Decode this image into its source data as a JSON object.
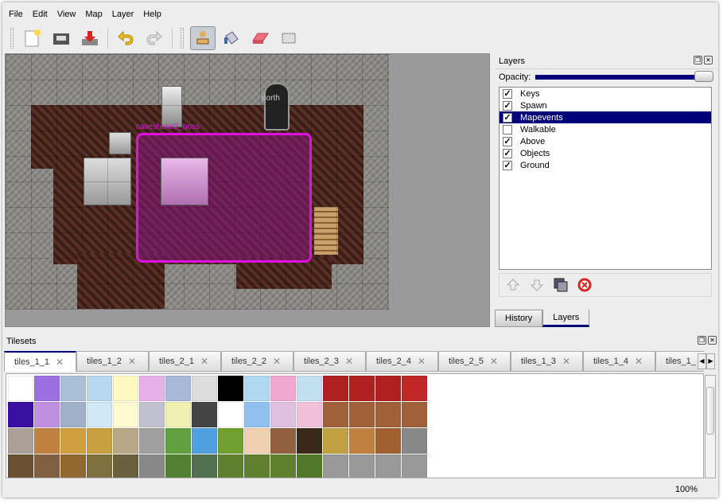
{
  "menu": [
    "File",
    "Edit",
    "View",
    "Map",
    "Layer",
    "Help"
  ],
  "toolbar": {
    "icons": [
      "new-file-icon",
      "open-folder-icon",
      "save-icon",
      "undo-icon",
      "redo-icon",
      "stamp-brush-icon",
      "bucket-fill-icon",
      "eraser-icon",
      "rect-select-icon"
    ],
    "active": "stamp-brush-icon"
  },
  "map": {
    "labels": {
      "north": "north",
      "event": "caveshake2_boss"
    },
    "event_color": "#e010e0"
  },
  "layers_panel": {
    "title": "Layers",
    "opacity_label": "Opacity:",
    "opacity": 100,
    "layers": [
      {
        "name": "Keys",
        "visible": true
      },
      {
        "name": "Spawn",
        "visible": true
      },
      {
        "name": "Mapevents",
        "visible": true,
        "selected": true
      },
      {
        "name": "Walkable",
        "visible": false
      },
      {
        "name": "Above",
        "visible": true
      },
      {
        "name": "Objects",
        "visible": true
      },
      {
        "name": "Ground",
        "visible": true
      }
    ],
    "tabs": [
      "History",
      "Layers"
    ],
    "active_tab": "Layers"
  },
  "tilesets": {
    "title": "Tilesets",
    "tabs": [
      "tiles_1_1",
      "tiles_1_2",
      "tiles_2_1",
      "tiles_2_2",
      "tiles_2_3",
      "tiles_2_4",
      "tiles_2_5",
      "tiles_1_3",
      "tiles_1_4",
      "tiles_1_"
    ],
    "active": "tiles_1_1"
  },
  "status": {
    "zoom": "100%"
  },
  "accent": "#00007a"
}
